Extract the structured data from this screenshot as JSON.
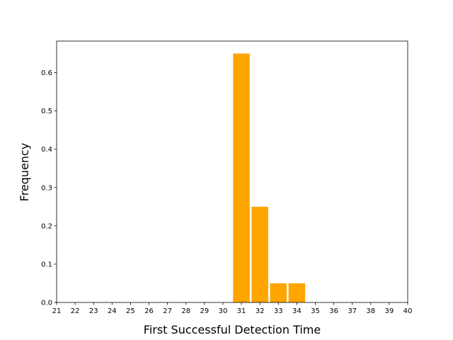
{
  "chart_data": {
    "type": "histogram",
    "x_label": "First Successful Detection Time",
    "y_label": "Frequency",
    "bins": [
      30.5,
      31.5,
      32.5,
      33.5,
      34.5
    ],
    "values": [
      0.65,
      0.25,
      0.05,
      0.05
    ],
    "color": "#ffa500",
    "xlim": [
      21,
      40
    ],
    "xticks": [
      21,
      22,
      23,
      24,
      25,
      26,
      27,
      28,
      29,
      30,
      31,
      32,
      33,
      34,
      35,
      36,
      37,
      38,
      39,
      40
    ],
    "ylim": [
      0,
      0.6825
    ],
    "yticks": [
      {
        "value": 0,
        "label": "0.0"
      },
      0.1,
      0.2,
      0.3,
      0.4,
      0.5,
      0.6
    ],
    "grid": false
  }
}
